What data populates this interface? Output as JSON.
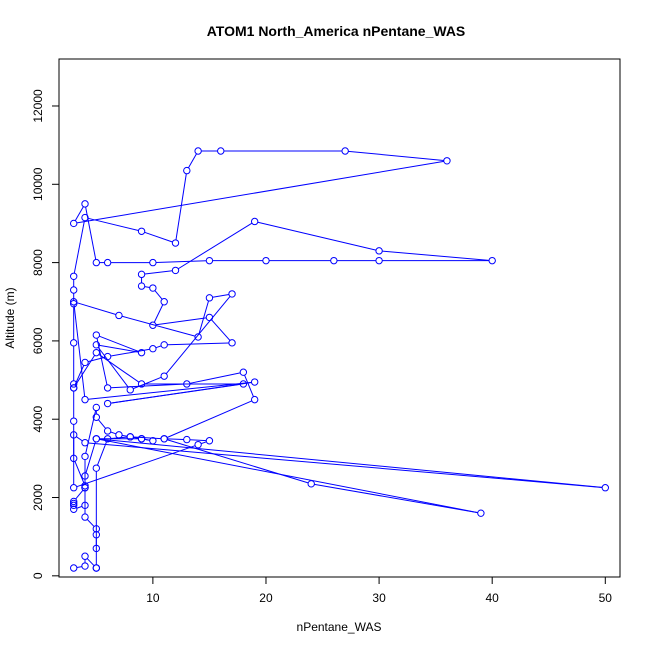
{
  "chart_data": {
    "type": "line",
    "title": "ATOM1 North_America nPentane_WAS",
    "xlabel": "nPentane_WAS",
    "ylabel": "Altitude (m)",
    "xlim": [
      1.7,
      51.3
    ],
    "ylim": [
      -30,
      13200
    ],
    "xticks": [
      10,
      20,
      30,
      40,
      50
    ],
    "yticks": [
      0,
      2000,
      4000,
      6000,
      8000,
      10000,
      12000
    ],
    "xtick_labels": [
      "10",
      "20",
      "30",
      "40",
      "50"
    ],
    "ytick_labels": [
      "0",
      "2000",
      "4000",
      "6000",
      "8000",
      "10000",
      "12000"
    ],
    "color": "#0000ff",
    "marker": "open-circle",
    "grid": false,
    "legend": "none",
    "series": [
      {
        "x": [
          3,
          4,
          4,
          5,
          5,
          5,
          5,
          6,
          8,
          9,
          10,
          9,
          9,
          5,
          4,
          4,
          4,
          3,
          3,
          3,
          3,
          4,
          4,
          5,
          5,
          6,
          7,
          8,
          11,
          13,
          15,
          14,
          3,
          3,
          3,
          3,
          3,
          3,
          3,
          3,
          4,
          9,
          12,
          13,
          14,
          16,
          27,
          36,
          3,
          4,
          5,
          6,
          10,
          15,
          20,
          26,
          30,
          40,
          30,
          19,
          12,
          9,
          9,
          10,
          11,
          10,
          15,
          17,
          11,
          10,
          6,
          4,
          3,
          5,
          9,
          18,
          6,
          19,
          4,
          3,
          7,
          14,
          15,
          17,
          11,
          8,
          5,
          9,
          5,
          6,
          13,
          18,
          19,
          11,
          24,
          39,
          5,
          50,
          4,
          3,
          3,
          4,
          4,
          5,
          5
        ],
        "y": [
          200,
          250,
          500,
          200,
          200,
          1050,
          2750,
          3500,
          3550,
          3500,
          3450,
          3500,
          3500,
          3500,
          2550,
          2250,
          1800,
          1700,
          1800,
          1850,
          1900,
          2250,
          3050,
          4300,
          4050,
          3700,
          3600,
          3550,
          3500,
          3480,
          3450,
          3350,
          2250,
          3950,
          4800,
          4900,
          5950,
          6950,
          7300,
          7650,
          9150,
          8800,
          8500,
          10350,
          10850,
          10850,
          10850,
          10600,
          9000,
          9500,
          8000,
          8000,
          8000,
          8050,
          8050,
          8050,
          8050,
          8050,
          8300,
          9050,
          7800,
          7700,
          7400,
          7350,
          7000,
          6400,
          6600,
          5950,
          5900,
          5800,
          5600,
          5450,
          4800,
          5700,
          4900,
          4900,
          4400,
          4950,
          4500,
          7000,
          6650,
          6100,
          7100,
          7200,
          5100,
          4750,
          5900,
          5700,
          6150,
          4800,
          4900,
          5200,
          4500,
          3500,
          2350,
          1600,
          3500,
          2250,
          3400,
          3600,
          3000,
          2300,
          1500,
          1200,
          700
        ]
      }
    ]
  }
}
